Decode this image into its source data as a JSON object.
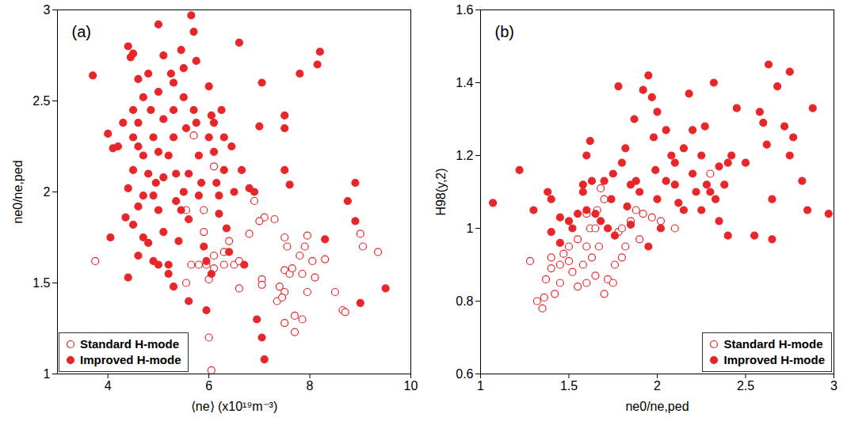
{
  "chart_data": [
    {
      "type": "scatter",
      "title": "(a)",
      "xlabel": "⟨ne⟩ (x10¹⁹m⁻³)",
      "ylabel": "ne0/ne,ped",
      "xlim": [
        3,
        10
      ],
      "xticks": [
        4,
        6,
        8,
        10
      ],
      "ylim": [
        1,
        3
      ],
      "yticks": [
        1,
        1.5,
        2,
        2.5,
        3
      ],
      "legend": "bottom-left",
      "series": [
        {
          "name": "Standard H-mode",
          "color": "#e8262a",
          "marker": "open",
          "x": [
            3.75,
            5.7,
            6.1,
            5.55,
            5.9,
            5.65,
            5.8,
            5.95,
            6.0,
            6.3,
            6.3,
            6.5,
            6.6,
            6.4,
            6.9,
            6.8,
            6.6,
            5.55,
            6.0,
            6.05,
            7.1,
            7.3,
            7.05,
            7.05,
            7.0,
            7.5,
            7.55,
            7.5,
            7.6,
            7.5,
            7.4,
            7.35,
            7.45,
            7.5,
            7.65,
            7.7,
            7.7,
            7.8,
            7.85,
            7.9,
            7.95,
            7.95,
            7.85,
            8.05,
            8.1,
            8.3,
            8.5,
            8.65,
            8.7,
            9.05,
            9.35,
            9.0,
            6.1,
            5.9,
            6.1
          ],
          "values": [
            1.62,
            2.31,
            2.14,
            1.9,
            1.78,
            1.6,
            1.6,
            1.6,
            1.52,
            1.67,
            1.6,
            1.6,
            1.62,
            1.73,
            1.95,
            1.77,
            1.47,
            1.5,
            1.2,
            1.02,
            1.86,
            1.85,
            1.52,
            1.49,
            1.84,
            1.75,
            1.7,
            1.57,
            1.55,
            1.45,
            1.48,
            1.4,
            1.42,
            1.28,
            1.58,
            1.32,
            1.23,
            1.65,
            1.55,
            1.7,
            1.76,
            1.45,
            1.3,
            1.62,
            1.53,
            1.63,
            1.45,
            1.35,
            1.34,
            1.7,
            1.67,
            1.77,
            1.65,
            1.9,
            1.58
          ]
        },
        {
          "name": "Improved H-mode",
          "color": "#e8262a",
          "marker": "filled",
          "x": [
            3.7,
            4.0,
            4.1,
            4.05,
            4.4,
            4.45,
            4.5,
            4.6,
            4.5,
            4.7,
            4.6,
            4.3,
            4.5,
            4.6,
            4.7,
            4.5,
            4.4,
            4.6,
            4.7,
            4.35,
            4.5,
            4.6,
            4.4,
            4.7,
            4.8,
            4.85,
            4.9,
            4.8,
            4.9,
            4.8,
            4.9,
            5.0,
            5.1,
            5.0,
            5.1,
            5.0,
            5.1,
            5.0,
            5.1,
            5.0,
            5.2,
            5.2,
            5.25,
            5.3,
            5.3,
            5.3,
            5.35,
            5.35,
            5.3,
            5.4,
            5.45,
            5.5,
            5.5,
            5.55,
            5.5,
            5.6,
            5.6,
            5.65,
            5.7,
            5.75,
            5.7,
            5.75,
            5.8,
            5.85,
            5.8,
            5.9,
            5.95,
            5.95,
            6.0,
            6.05,
            6.1,
            6.0,
            6.1,
            6.15,
            6.2,
            6.2,
            6.25,
            6.3,
            6.3,
            6.35,
            6.4,
            6.45,
            6.5,
            6.6,
            6.65,
            6.7,
            6.8,
            6.9,
            6.95,
            7.0,
            7.05,
            7.1,
            7.05,
            7.5,
            7.5,
            7.5,
            7.6,
            7.8,
            8.15,
            8.2,
            8.3,
            8.9,
            8.9,
            8.75,
            9.0,
            9.5,
            5.2,
            5.6,
            6.05,
            4.95,
            5.45,
            4.2
          ],
          "values": [
            2.64,
            2.32,
            2.24,
            1.75,
            2.8,
            2.74,
            2.76,
            2.62,
            2.45,
            2.52,
            2.38,
            2.38,
            2.3,
            2.25,
            2.2,
            2.12,
            2.02,
            1.92,
            1.98,
            1.86,
            1.82,
            1.65,
            1.53,
            1.75,
            2.65,
            2.45,
            2.3,
            2.1,
            1.98,
            1.72,
            1.62,
            2.92,
            2.75,
            2.55,
            2.4,
            2.22,
            2.08,
            1.9,
            1.78,
            1.6,
            1.55,
            2.2,
            2.65,
            2.6,
            2.45,
            2.3,
            2.1,
            1.95,
            1.48,
            1.73,
            2.78,
            2.68,
            2.52,
            2.35,
            2.0,
            2.1,
            1.85,
            2.97,
            2.88,
            2.72,
            2.45,
            2.38,
            2.2,
            2.05,
            1.98,
            1.7,
            1.62,
            1.35,
            2.58,
            2.42,
            2.38,
            2.3,
            2.22,
            2.05,
            1.98,
            1.88,
            2.45,
            2.3,
            2.12,
            1.8,
            1.67,
            2.25,
            2.0,
            2.82,
            2.12,
            1.6,
            2.02,
            2.0,
            1.3,
            2.36,
            2.6,
            1.08,
            1.2,
            2.42,
            2.35,
            2.12,
            2.04,
            2.65,
            2.7,
            2.77,
            1.74,
            2.05,
            1.84,
            1.95,
            1.39,
            1.47,
            1.6,
            1.4,
            1.55,
            2.05,
            1.9,
            2.25
          ]
        }
      ]
    },
    {
      "type": "scatter",
      "title": "(b)",
      "xlabel": "ne0/ne,ped",
      "ylabel": "H98(y,2)",
      "xlim": [
        1,
        3
      ],
      "xticks": [
        1,
        1.5,
        2,
        2.5,
        3
      ],
      "ylim": [
        0.6,
        1.6
      ],
      "yticks": [
        0.6,
        0.8,
        1,
        1.2,
        1.4,
        1.6
      ],
      "legend": "bottom-right",
      "series": [
        {
          "name": "Standard H-mode",
          "color": "#e8262a",
          "marker": "open",
          "x": [
            1.28,
            1.32,
            1.35,
            1.36,
            1.37,
            1.4,
            1.4,
            1.42,
            1.45,
            1.47,
            1.5,
            1.5,
            1.52,
            1.55,
            1.55,
            1.58,
            1.6,
            1.6,
            1.62,
            1.63,
            1.65,
            1.66,
            1.67,
            1.68,
            1.7,
            1.72,
            1.75,
            1.76,
            1.78,
            1.8,
            1.8,
            1.85,
            1.88,
            1.9,
            1.92,
            1.97,
            2.02,
            2.1,
            2.3,
            1.45,
            1.6,
            1.7,
            1.82,
            1.65
          ],
          "values": [
            0.91,
            0.8,
            0.78,
            0.81,
            0.86,
            0.92,
            0.89,
            0.82,
            0.9,
            0.93,
            0.95,
            0.91,
            0.88,
            0.97,
            0.84,
            0.9,
            0.95,
            0.85,
            1.0,
            0.92,
            0.87,
            1.05,
            0.95,
            1.11,
            1.08,
            0.86,
            0.85,
            0.9,
            0.99,
            0.92,
            1.0,
            1.02,
            1.05,
            0.97,
            1.04,
            1.03,
            1.02,
            1.0,
            1.15,
            0.85,
            1.04,
            0.82,
            0.95,
            1.0
          ]
        },
        {
          "name": "Improved H-mode",
          "color": "#e8262a",
          "marker": "filled",
          "x": [
            1.07,
            1.22,
            1.3,
            1.38,
            1.4,
            1.4,
            1.45,
            1.45,
            1.5,
            1.52,
            1.55,
            1.58,
            1.58,
            1.6,
            1.6,
            1.62,
            1.63,
            1.65,
            1.68,
            1.7,
            1.72,
            1.74,
            1.75,
            1.76,
            1.78,
            1.8,
            1.82,
            1.83,
            1.85,
            1.87,
            1.88,
            1.9,
            1.92,
            1.95,
            1.97,
            1.98,
            1.99,
            2.0,
            2.0,
            2.02,
            2.05,
            2.08,
            2.1,
            2.12,
            2.15,
            2.15,
            2.18,
            2.2,
            2.2,
            2.22,
            2.25,
            2.25,
            2.28,
            2.3,
            2.32,
            2.33,
            2.35,
            2.35,
            2.38,
            2.4,
            2.4,
            2.42,
            2.45,
            2.5,
            2.55,
            2.58,
            2.6,
            2.62,
            2.63,
            2.65,
            2.65,
            2.68,
            2.72,
            2.75,
            2.75,
            2.77,
            2.82,
            2.85,
            2.88,
            2.97,
            1.95,
            2.05,
            2.1,
            1.85,
            2.27
          ],
          "values": [
            1.07,
            1.16,
            1.05,
            1.1,
            0.99,
            1.08,
            1.03,
            0.96,
            1.02,
            1.0,
            1.04,
            1.12,
            1.1,
            1.2,
            1.05,
            1.24,
            1.13,
            1.04,
            1.02,
            1.13,
            1.0,
            1.08,
            1.15,
            0.98,
            1.39,
            1.18,
            1.22,
            1.06,
            1.01,
            1.3,
            1.13,
            1.1,
            1.38,
            1.42,
            1.36,
            1.25,
            1.16,
            1.32,
            1.08,
            1.0,
            1.13,
            1.2,
            1.18,
            1.07,
            1.22,
            1.05,
            1.37,
            1.27,
            1.15,
            1.1,
            1.2,
            1.05,
            1.12,
            1.1,
            1.4,
            1.08,
            1.17,
            1.02,
            1.12,
            0.98,
            1.18,
            1.2,
            1.33,
            1.18,
            0.98,
            1.32,
            1.29,
            1.23,
            1.45,
            1.08,
            0.97,
            1.39,
            1.28,
            1.43,
            1.2,
            1.25,
            1.13,
            1.05,
            1.33,
            1.04,
            0.95,
            1.27,
            1.12,
            1.12,
            1.28
          ]
        }
      ]
    }
  ]
}
